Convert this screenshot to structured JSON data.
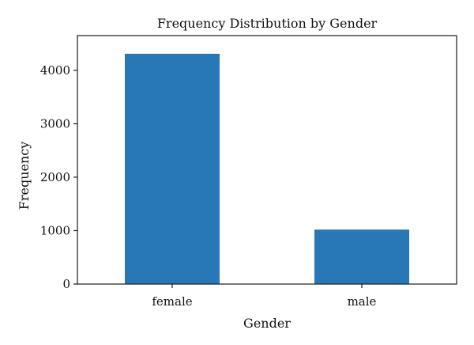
{
  "chart_data": {
    "type": "bar",
    "title": "Frequency Distribution by Gender",
    "xlabel": "Gender",
    "ylabel": "Frequency",
    "categories": [
      "female",
      "male"
    ],
    "values": [
      4310,
      1020
    ],
    "ylim": [
      0,
      4650
    ],
    "yticks": [
      0,
      1000,
      2000,
      3000,
      4000
    ],
    "legend": false,
    "grid": false,
    "bar_color": "#2878b8"
  }
}
